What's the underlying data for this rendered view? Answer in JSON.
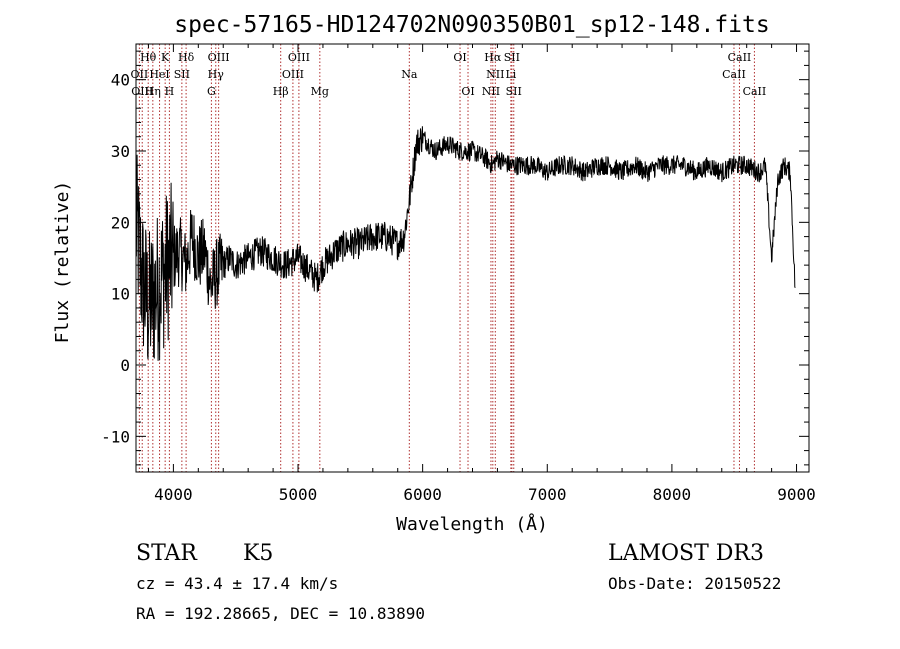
{
  "chart_data": {
    "type": "line",
    "title": "spec-57165-HD124702N090350B01_sp12-148.fits",
    "xlabel": "Wavelength (Å)",
    "ylabel": "Flux (relative)",
    "xlim": [
      3700,
      9100
    ],
    "ylim": [
      -15,
      45
    ],
    "xticks": [
      4000,
      5000,
      6000,
      7000,
      8000,
      9000
    ],
    "yticks": [
      -10,
      0,
      10,
      20,
      30,
      40
    ],
    "series": [
      {
        "name": "spectrum",
        "x": [
          3700,
          3750,
          3800,
          3850,
          3900,
          3950,
          4000,
          4050,
          4100,
          4150,
          4200,
          4250,
          4300,
          4350,
          4400,
          4450,
          4500,
          4600,
          4700,
          4800,
          4900,
          5000,
          5100,
          5150,
          5200,
          5250,
          5300,
          5400,
          5500,
          5600,
          5700,
          5800,
          5850,
          5900,
          5950,
          6000,
          6050,
          6100,
          6200,
          6300,
          6400,
          6500,
          6560,
          6600,
          6700,
          6800,
          6900,
          7000,
          7100,
          7200,
          7300,
          7400,
          7500,
          7600,
          7700,
          7800,
          7900,
          8000,
          8100,
          8200,
          8300,
          8400,
          8500,
          8600,
          8700,
          8750,
          8800,
          8850,
          8900,
          8950,
          8990
        ],
        "y": [
          20,
          12,
          8,
          10,
          12,
          14,
          15,
          16,
          14,
          18,
          15,
          16,
          11,
          13,
          14,
          15,
          14,
          15,
          16,
          15,
          14,
          15,
          13,
          12,
          14,
          15,
          16,
          17,
          17,
          18,
          18,
          17,
          18,
          24,
          31,
          32,
          31,
          30,
          31,
          30,
          30,
          29,
          28,
          29,
          28,
          28,
          28,
          27,
          28,
          28,
          27,
          28,
          28,
          27,
          28,
          27,
          28,
          28,
          28,
          27,
          28,
          27,
          28,
          28,
          27,
          28,
          15,
          26,
          28,
          27,
          10
        ]
      }
    ],
    "lines": [
      {
        "label": "Hθ",
        "wave": 3798,
        "row": 0
      },
      {
        "label": "OII",
        "wave": 3727,
        "row": 1
      },
      {
        "label": "OIII",
        "wave": 3750,
        "row": 2
      },
      {
        "label": "K",
        "wave": 3934,
        "row": 0
      },
      {
        "label": "HeI",
        "wave": 3889,
        "row": 1
      },
      {
        "label": "Hη",
        "wave": 3835,
        "row": 2
      },
      {
        "label": "SII",
        "wave": 4068,
        "row": 1
      },
      {
        "label": "H",
        "wave": 3968,
        "row": 2
      },
      {
        "label": "Hδ",
        "wave": 4102,
        "row": 0
      },
      {
        "label": "OIII",
        "wave": 4363,
        "row": 0
      },
      {
        "label": "Hγ",
        "wave": 4340,
        "row": 1
      },
      {
        "label": "G",
        "wave": 4305,
        "row": 2
      },
      {
        "label": "OIII",
        "wave": 5007,
        "row": 0
      },
      {
        "label": "OIII",
        "wave": 4959,
        "row": 1
      },
      {
        "label": "Hβ",
        "wave": 4861,
        "row": 2
      },
      {
        "label": "Mg",
        "wave": 5175,
        "row": 2
      },
      {
        "label": "Na",
        "wave": 5893,
        "row": 1
      },
      {
        "label": "OI",
        "wave": 6300,
        "row": 0
      },
      {
        "label": "OI",
        "wave": 6364,
        "row": 2
      },
      {
        "label": "Hα",
        "wave": 6563,
        "row": 0
      },
      {
        "label": "SII",
        "wave": 6716,
        "row": 0
      },
      {
        "label": "NII",
        "wave": 6583,
        "row": 1
      },
      {
        "label": "Li",
        "wave": 6708,
        "row": 1
      },
      {
        "label": "NII",
        "wave": 6548,
        "row": 2
      },
      {
        "label": "SII",
        "wave": 6731,
        "row": 2
      },
      {
        "label": "CaII",
        "wave": 8542,
        "row": 0
      },
      {
        "label": "CaII",
        "wave": 8498,
        "row": 1
      },
      {
        "label": "CaII",
        "wave": 8662,
        "row": 2
      }
    ]
  },
  "info": {
    "object_class": "STAR",
    "subclass": "K5",
    "survey": "LAMOST DR3",
    "cz": "cz = 43.4 ± 17.4 km/s",
    "obs_date": "Obs-Date: 20150522",
    "coords": "RA = 192.28665, DEC =  10.83890"
  }
}
